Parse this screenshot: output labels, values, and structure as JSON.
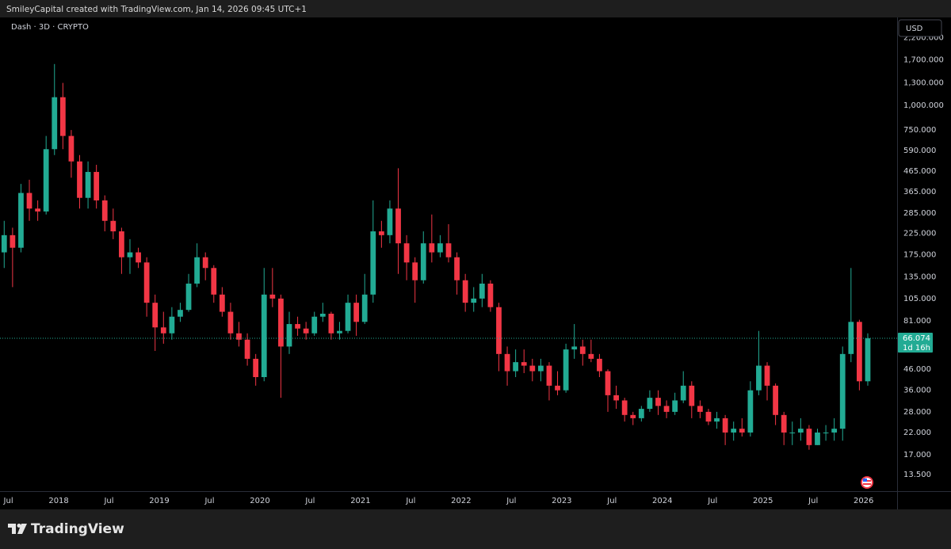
{
  "header": {
    "attribution": "SmileyCapital created with TradingView.com, Jan 14, 2026 09:45 UTC+1"
  },
  "chart_data": {
    "type": "candlestick",
    "title": "Dash · 3D · CRYPTO",
    "currency": "USD",
    "log_scale": true,
    "grid": false,
    "up_color": "#22ab94",
    "down_color": "#f23645",
    "ylim": [
      11.1,
      2790
    ],
    "yticks": [
      {
        "value": 2200,
        "label": "2,200.000"
      },
      {
        "value": 1700,
        "label": "1,700.000"
      },
      {
        "value": 1300,
        "label": "1,300.000"
      },
      {
        "value": 1000,
        "label": "1,000.000"
      },
      {
        "value": 750,
        "label": "750.000"
      },
      {
        "value": 590,
        "label": "590.000"
      },
      {
        "value": 465,
        "label": "465.000"
      },
      {
        "value": 365,
        "label": "365.000"
      },
      {
        "value": 285,
        "label": "285.000"
      },
      {
        "value": 225,
        "label": "225.000"
      },
      {
        "value": 175,
        "label": "175.000"
      },
      {
        "value": 135,
        "label": "135.000"
      },
      {
        "value": 105,
        "label": "105.000"
      },
      {
        "value": 81,
        "label": "81.000"
      },
      {
        "value": 46,
        "label": "46.000"
      },
      {
        "value": 36,
        "label": "36.000"
      },
      {
        "value": 28,
        "label": "28.000"
      },
      {
        "value": 22,
        "label": "22.000"
      },
      {
        "value": 17,
        "label": "17.000"
      },
      {
        "value": 13.5,
        "label": "13.500"
      }
    ],
    "xlim": [
      "2017-06",
      "2026-05"
    ],
    "xticks": [
      {
        "value": "2017-07",
        "label": "Jul"
      },
      {
        "value": "2018-01",
        "label": "2018"
      },
      {
        "value": "2018-07",
        "label": "Jul"
      },
      {
        "value": "2019-01",
        "label": "2019"
      },
      {
        "value": "2019-07",
        "label": "Jul"
      },
      {
        "value": "2020-01",
        "label": "2020"
      },
      {
        "value": "2020-07",
        "label": "Jul"
      },
      {
        "value": "2021-01",
        "label": "2021"
      },
      {
        "value": "2021-07",
        "label": "Jul"
      },
      {
        "value": "2022-01",
        "label": "2022"
      },
      {
        "value": "2022-07",
        "label": "Jul"
      },
      {
        "value": "2023-01",
        "label": "2023"
      },
      {
        "value": "2023-07",
        "label": "Jul"
      },
      {
        "value": "2024-01",
        "label": "2024"
      },
      {
        "value": "2024-07",
        "label": "Jul"
      },
      {
        "value": "2025-01",
        "label": "2025"
      },
      {
        "value": "2025-07",
        "label": "Jul"
      },
      {
        "value": "2026-01",
        "label": "2026"
      }
    ],
    "last_price": 66.074,
    "countdown": "1d 16h",
    "x": [
      "2017-06",
      "2017-07",
      "2017-08",
      "2017-09",
      "2017-10",
      "2017-11",
      "2017-12",
      "2018-01",
      "2018-02",
      "2018-03",
      "2018-04",
      "2018-05",
      "2018-06",
      "2018-07",
      "2018-08",
      "2018-09",
      "2018-10",
      "2018-11",
      "2018-12",
      "2019-01",
      "2019-02",
      "2019-03",
      "2019-04",
      "2019-05",
      "2019-06",
      "2019-07",
      "2019-08",
      "2019-09",
      "2019-10",
      "2019-11",
      "2019-12",
      "2020-01",
      "2020-02",
      "2020-03",
      "2020-04",
      "2020-05",
      "2020-06",
      "2020-07",
      "2020-08",
      "2020-09",
      "2020-10",
      "2020-11",
      "2020-12",
      "2021-01",
      "2021-02",
      "2021-03",
      "2021-04",
      "2021-05",
      "2021-06",
      "2021-07",
      "2021-08",
      "2021-09",
      "2021-10",
      "2021-11",
      "2021-12",
      "2022-01",
      "2022-02",
      "2022-03",
      "2022-04",
      "2022-05",
      "2022-06",
      "2022-07",
      "2022-08",
      "2022-09",
      "2022-10",
      "2022-11",
      "2022-12",
      "2023-01",
      "2023-02",
      "2023-03",
      "2023-04",
      "2023-05",
      "2023-06",
      "2023-07",
      "2023-08",
      "2023-09",
      "2023-10",
      "2023-11",
      "2023-12",
      "2024-01",
      "2024-02",
      "2024-03",
      "2024-04",
      "2024-05",
      "2024-06",
      "2024-07",
      "2024-08",
      "2024-09",
      "2024-10",
      "2024-11",
      "2024-12",
      "2025-01",
      "2025-02",
      "2025-03",
      "2025-04",
      "2025-05",
      "2025-06",
      "2025-07",
      "2025-08",
      "2025-09",
      "2025-10",
      "2025-11",
      "2025-12",
      "2026-01"
    ],
    "ohlc": [
      [
        180,
        260,
        150,
        220
      ],
      [
        220,
        240,
        120,
        190
      ],
      [
        190,
        400,
        180,
        360
      ],
      [
        360,
        420,
        260,
        300
      ],
      [
        300,
        330,
        260,
        290
      ],
      [
        290,
        700,
        280,
        600
      ],
      [
        600,
        1620,
        560,
        1100
      ],
      [
        1100,
        1300,
        600,
        700
      ],
      [
        700,
        750,
        430,
        520
      ],
      [
        520,
        560,
        300,
        340
      ],
      [
        340,
        520,
        300,
        460
      ],
      [
        460,
        500,
        300,
        330
      ],
      [
        330,
        350,
        230,
        260
      ],
      [
        260,
        300,
        210,
        230
      ],
      [
        230,
        240,
        140,
        170
      ],
      [
        170,
        210,
        140,
        180
      ],
      [
        180,
        190,
        150,
        160
      ],
      [
        160,
        170,
        85,
        100
      ],
      [
        100,
        110,
        57,
        75
      ],
      [
        75,
        90,
        62,
        70
      ],
      [
        70,
        95,
        65,
        85
      ],
      [
        85,
        100,
        80,
        92
      ],
      [
        92,
        140,
        90,
        125
      ],
      [
        125,
        200,
        120,
        170
      ],
      [
        170,
        180,
        130,
        150
      ],
      [
        150,
        155,
        100,
        110
      ],
      [
        110,
        120,
        85,
        90
      ],
      [
        90,
        100,
        65,
        70
      ],
      [
        70,
        80,
        60,
        65
      ],
      [
        65,
        70,
        48,
        52
      ],
      [
        52,
        55,
        38,
        42
      ],
      [
        42,
        150,
        40,
        110
      ],
      [
        110,
        150,
        95,
        105
      ],
      [
        105,
        110,
        33,
        60
      ],
      [
        60,
        90,
        55,
        78
      ],
      [
        78,
        85,
        68,
        74
      ],
      [
        74,
        80,
        65,
        70
      ],
      [
        70,
        90,
        68,
        85
      ],
      [
        85,
        100,
        80,
        88
      ],
      [
        88,
        90,
        65,
        70
      ],
      [
        70,
        80,
        65,
        72
      ],
      [
        72,
        110,
        70,
        100
      ],
      [
        100,
        110,
        68,
        80
      ],
      [
        80,
        140,
        78,
        110
      ],
      [
        110,
        330,
        100,
        230
      ],
      [
        230,
        260,
        190,
        220
      ],
      [
        220,
        330,
        200,
        300
      ],
      [
        300,
        480,
        140,
        200
      ],
      [
        200,
        220,
        130,
        160
      ],
      [
        160,
        170,
        100,
        130
      ],
      [
        130,
        230,
        125,
        200
      ],
      [
        200,
        280,
        160,
        180
      ],
      [
        180,
        220,
        170,
        200
      ],
      [
        200,
        250,
        160,
        170
      ],
      [
        170,
        180,
        110,
        130
      ],
      [
        130,
        140,
        90,
        100
      ],
      [
        100,
        120,
        90,
        105
      ],
      [
        105,
        140,
        95,
        125
      ],
      [
        125,
        130,
        90,
        95
      ],
      [
        95,
        100,
        45,
        55
      ],
      [
        55,
        60,
        38,
        45
      ],
      [
        45,
        58,
        42,
        50
      ],
      [
        50,
        58,
        44,
        48
      ],
      [
        48,
        52,
        40,
        45
      ],
      [
        45,
        52,
        40,
        48
      ],
      [
        48,
        50,
        32,
        38
      ],
      [
        38,
        45,
        34,
        36
      ],
      [
        36,
        62,
        35,
        58
      ],
      [
        58,
        78,
        52,
        60
      ],
      [
        60,
        65,
        48,
        55
      ],
      [
        55,
        65,
        50,
        52
      ],
      [
        52,
        55,
        42,
        45
      ],
      [
        45,
        46,
        28,
        34
      ],
      [
        34,
        38,
        29,
        32
      ],
      [
        32,
        33,
        25,
        27
      ],
      [
        27,
        28,
        24,
        26
      ],
      [
        26,
        30,
        25,
        29
      ],
      [
        29,
        36,
        28,
        33
      ],
      [
        33,
        36,
        27,
        30
      ],
      [
        30,
        32,
        26,
        28
      ],
      [
        28,
        35,
        27,
        32
      ],
      [
        32,
        45,
        31,
        38
      ],
      [
        38,
        40,
        26,
        30
      ],
      [
        30,
        32,
        26,
        28
      ],
      [
        28,
        29,
        24,
        25
      ],
      [
        25,
        28,
        23,
        26
      ],
      [
        26,
        27,
        19,
        22
      ],
      [
        22,
        25,
        20,
        23
      ],
      [
        23,
        26,
        21,
        22
      ],
      [
        22,
        40,
        21,
        36
      ],
      [
        36,
        72,
        34,
        48
      ],
      [
        48,
        50,
        32,
        38
      ],
      [
        38,
        39,
        24,
        27
      ],
      [
        27,
        28,
        19,
        22
      ],
      [
        22,
        25,
        19,
        22
      ],
      [
        22,
        26,
        20,
        23
      ],
      [
        23,
        24,
        18,
        19
      ],
      [
        19,
        23,
        19,
        22
      ],
      [
        22,
        24,
        20,
        22
      ],
      [
        22,
        26,
        20,
        23
      ],
      [
        23,
        60,
        20,
        55
      ],
      [
        55,
        150,
        50,
        80
      ],
      [
        80,
        82,
        36,
        40
      ],
      [
        40,
        70,
        38,
        66.074
      ]
    ]
  },
  "footer": {
    "brand": "TradingView"
  }
}
